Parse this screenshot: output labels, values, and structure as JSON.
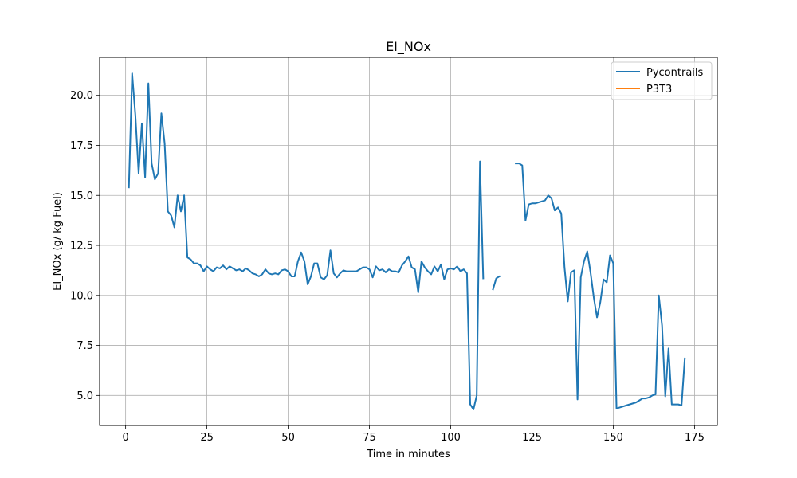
{
  "chart_data": {
    "type": "line",
    "title": "EI_NOx",
    "xlabel": "Time in minutes",
    "ylabel": "EI_NOx (g/ kg Fuel)",
    "xlim": [
      -8,
      182
    ],
    "ylim": [
      3.5,
      21.9
    ],
    "xticks": [
      0,
      25,
      50,
      75,
      100,
      125,
      150,
      175
    ],
    "yticks": [
      5.0,
      7.5,
      10.0,
      12.5,
      15.0,
      17.5,
      20.0
    ],
    "xtick_labels": [
      "0",
      "25",
      "50",
      "75",
      "100",
      "125",
      "150",
      "175"
    ],
    "ytick_labels": [
      "5.0",
      "7.5",
      "10.0",
      "12.5",
      "15.0",
      "17.5",
      "20.0"
    ],
    "grid": true,
    "legend_position": "top-right",
    "series": [
      {
        "name": "Pycontrails",
        "color": "#1f77b4",
        "segments": [
          [
            [
              1,
              15.4
            ],
            [
              1.5,
              18.2
            ],
            [
              2,
              21.1
            ],
            [
              3,
              19.0
            ],
            [
              4,
              16.1
            ],
            [
              5,
              18.6
            ],
            [
              6,
              15.9
            ],
            [
              7,
              20.6
            ],
            [
              8,
              16.6
            ],
            [
              9,
              15.8
            ],
            [
              10,
              16.1
            ],
            [
              11,
              19.1
            ],
            [
              12,
              17.6
            ],
            [
              13,
              14.2
            ],
            [
              14,
              14.0
            ],
            [
              15,
              13.4
            ],
            [
              16,
              15.0
            ],
            [
              17,
              14.2
            ],
            [
              18,
              15.0
            ],
            [
              19,
              11.9
            ],
            [
              20,
              11.8
            ],
            [
              21,
              11.6
            ],
            [
              22,
              11.6
            ],
            [
              23,
              11.5
            ],
            [
              24,
              11.2
            ],
            [
              25,
              11.45
            ],
            [
              26,
              11.3
            ],
            [
              27,
              11.2
            ],
            [
              28,
              11.4
            ],
            [
              29,
              11.35
            ],
            [
              30,
              11.5
            ],
            [
              31,
              11.3
            ],
            [
              32,
              11.45
            ],
            [
              33,
              11.35
            ],
            [
              34,
              11.25
            ],
            [
              35,
              11.3
            ],
            [
              36,
              11.2
            ],
            [
              37,
              11.35
            ],
            [
              38,
              11.25
            ],
            [
              39,
              11.1
            ],
            [
              40,
              11.05
            ],
            [
              41,
              10.95
            ],
            [
              42,
              11.05
            ],
            [
              43,
              11.3
            ],
            [
              44,
              11.1
            ],
            [
              45,
              11.05
            ],
            [
              46,
              11.1
            ],
            [
              47,
              11.05
            ],
            [
              48,
              11.25
            ],
            [
              49,
              11.3
            ],
            [
              50,
              11.2
            ],
            [
              51,
              10.95
            ],
            [
              52,
              10.95
            ],
            [
              53,
              11.7
            ],
            [
              54,
              12.15
            ],
            [
              55,
              11.7
            ],
            [
              56,
              10.55
            ],
            [
              57,
              10.95
            ],
            [
              58,
              11.6
            ],
            [
              59,
              11.6
            ],
            [
              60,
              10.9
            ],
            [
              61,
              10.8
            ],
            [
              62,
              11.0
            ],
            [
              63,
              12.25
            ],
            [
              64,
              11.1
            ],
            [
              65,
              10.9
            ],
            [
              66,
              11.1
            ],
            [
              67,
              11.25
            ],
            [
              68,
              11.2
            ],
            [
              69,
              11.2
            ],
            [
              70,
              11.2
            ],
            [
              71,
              11.2
            ],
            [
              72,
              11.3
            ],
            [
              73,
              11.4
            ],
            [
              74,
              11.4
            ],
            [
              75,
              11.3
            ],
            [
              76,
              10.9
            ],
            [
              77,
              11.45
            ],
            [
              78,
              11.25
            ],
            [
              79,
              11.3
            ],
            [
              80,
              11.15
            ],
            [
              81,
              11.3
            ],
            [
              82,
              11.2
            ],
            [
              83,
              11.2
            ],
            [
              84,
              11.15
            ],
            [
              85,
              11.5
            ],
            [
              86,
              11.7
            ],
            [
              87,
              11.95
            ],
            [
              88,
              11.4
            ],
            [
              89,
              11.3
            ],
            [
              90,
              10.15
            ],
            [
              91,
              11.7
            ],
            [
              92,
              11.4
            ],
            [
              93,
              11.2
            ],
            [
              94,
              11.05
            ],
            [
              95,
              11.45
            ],
            [
              96,
              11.2
            ],
            [
              97,
              11.55
            ],
            [
              98,
              10.8
            ],
            [
              99,
              11.3
            ],
            [
              100,
              11.35
            ],
            [
              101,
              11.3
            ],
            [
              102,
              11.45
            ],
            [
              103,
              11.2
            ],
            [
              104,
              11.3
            ],
            [
              105,
              11.1
            ],
            [
              106,
              4.55
            ],
            [
              107,
              4.3
            ],
            [
              108,
              5.0
            ],
            [
              109,
              16.7
            ],
            [
              110,
              10.85
            ]
          ],
          [
            [
              113,
              10.3
            ],
            [
              114,
              10.85
            ],
            [
              115,
              10.95
            ]
          ],
          [
            [
              120,
              16.6
            ],
            [
              121,
              16.6
            ],
            [
              122,
              16.5
            ],
            [
              123,
              13.75
            ],
            [
              124,
              14.55
            ],
            [
              125,
              14.6
            ],
            [
              126,
              14.6
            ],
            [
              127,
              14.65
            ],
            [
              128,
              14.7
            ],
            [
              129,
              14.75
            ],
            [
              130,
              15.0
            ],
            [
              131,
              14.85
            ],
            [
              132,
              14.25
            ],
            [
              133,
              14.4
            ],
            [
              134,
              14.1
            ],
            [
              135,
              11.4
            ],
            [
              136,
              9.7
            ],
            [
              137,
              11.15
            ],
            [
              138,
              11.25
            ],
            [
              139,
              4.8
            ],
            [
              140,
              10.9
            ],
            [
              141,
              11.7
            ],
            [
              142,
              12.2
            ],
            [
              143,
              11.15
            ],
            [
              144,
              9.9
            ],
            [
              145,
              8.9
            ],
            [
              146,
              9.65
            ],
            [
              147,
              10.8
            ],
            [
              148,
              10.65
            ],
            [
              149,
              12.0
            ],
            [
              150,
              11.6
            ],
            [
              151,
              4.35
            ],
            [
              152,
              4.4
            ],
            [
              153,
              4.45
            ],
            [
              154,
              4.5
            ],
            [
              155,
              4.55
            ],
            [
              156,
              4.6
            ],
            [
              157,
              4.65
            ],
            [
              158,
              4.75
            ],
            [
              159,
              4.85
            ],
            [
              160,
              4.85
            ],
            [
              161,
              4.9
            ],
            [
              162,
              5.0
            ],
            [
              163,
              5.05
            ],
            [
              164,
              10.0
            ],
            [
              165,
              8.5
            ],
            [
              166,
              4.95
            ],
            [
              167,
              7.35
            ],
            [
              168,
              4.55
            ],
            [
              169,
              4.55
            ],
            [
              170,
              4.55
            ],
            [
              171,
              4.5
            ],
            [
              172,
              6.85
            ]
          ]
        ]
      },
      {
        "name": "P3T3",
        "color": "#ff7f0e",
        "segments": []
      }
    ]
  }
}
